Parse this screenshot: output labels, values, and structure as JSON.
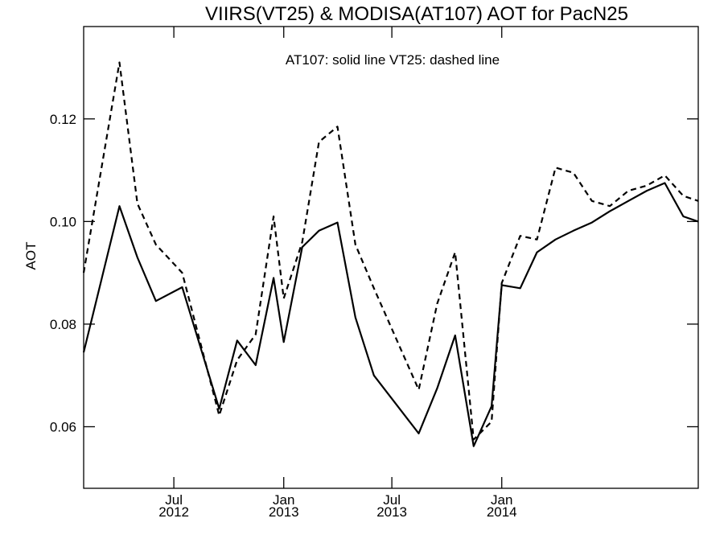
{
  "chart_data": {
    "type": "line",
    "title": "VIIRS(VT25) & MODISA(AT107)  AOT for PacN25",
    "subtitle": "AT107: solid line   VT25: dashed line",
    "xlabel": "",
    "ylabel": "AOT",
    "ylim": [
      0.048,
      0.138
    ],
    "xlim": [
      "2012-02-01",
      "2014-11-26"
    ],
    "yticks": [
      0.06,
      0.08,
      0.1,
      0.12
    ],
    "ytick_labels": [
      "0.06",
      "0.08",
      "0.10",
      "0.12"
    ],
    "xticks": [
      {
        "date": "2012-07-01",
        "month": "Jul",
        "year": "2012"
      },
      {
        "date": "2013-01-01",
        "month": "Jan",
        "year": "2013"
      },
      {
        "date": "2013-07-01",
        "month": "Jul",
        "year": "2013"
      },
      {
        "date": "2014-01-01",
        "month": "Jan",
        "year": "2014"
      }
    ],
    "grid": false,
    "series": [
      {
        "name": "AT107",
        "style": "solid",
        "color": "#000000",
        "x": [
          "2012-02-01",
          "2012-04-01",
          "2012-05-01",
          "2012-06-01",
          "2012-07-15",
          "2012-09-15",
          "2012-10-15",
          "2012-11-15",
          "2012-12-15",
          "2013-01-01",
          "2013-02-01",
          "2013-03-01",
          "2013-04-01",
          "2013-05-01",
          "2013-06-01",
          "2013-08-15",
          "2013-09-15",
          "2013-10-15",
          "2013-11-15",
          "2013-12-15",
          "2014-01-01",
          "2014-02-01",
          "2014-03-01",
          "2014-04-01",
          "2014-05-01",
          "2014-06-01",
          "2014-07-01",
          "2014-08-01",
          "2014-09-01",
          "2014-10-01",
          "2014-11-01",
          "2014-11-26"
        ],
        "values": [
          0.0745,
          0.103,
          0.093,
          0.0845,
          0.0872,
          0.0635,
          0.0768,
          0.072,
          0.089,
          0.0765,
          0.095,
          0.0982,
          0.0998,
          0.0813,
          0.07,
          0.0587,
          0.0675,
          0.0778,
          0.0562,
          0.064,
          0.0876,
          0.087,
          0.094,
          0.0965,
          0.0982,
          0.0998,
          0.102,
          0.104,
          0.106,
          0.1075,
          0.101,
          0.1
        ]
      },
      {
        "name": "VT25",
        "style": "dashed",
        "color": "#000000",
        "x": [
          "2012-02-01",
          "2012-04-01",
          "2012-05-01",
          "2012-06-01",
          "2012-07-15",
          "2012-09-15",
          "2012-10-15",
          "2012-11-15",
          "2012-12-15",
          "2013-01-01",
          "2013-02-01",
          "2013-03-01",
          "2013-04-01",
          "2013-05-01",
          "2013-06-01",
          "2013-08-15",
          "2013-09-15",
          "2013-10-15",
          "2013-11-15",
          "2013-12-15",
          "2014-01-01",
          "2014-02-01",
          "2014-03-01",
          "2014-04-01",
          "2014-05-01",
          "2014-06-01",
          "2014-07-01",
          "2014-08-01",
          "2014-09-01",
          "2014-10-01",
          "2014-11-01",
          "2014-11-26"
        ],
        "values": [
          0.09,
          0.131,
          0.1035,
          0.0955,
          0.09,
          0.0622,
          0.073,
          0.078,
          0.101,
          0.085,
          0.096,
          0.1155,
          0.1185,
          0.0955,
          0.087,
          0.0672,
          0.084,
          0.094,
          0.0575,
          0.061,
          0.088,
          0.0972,
          0.0965,
          0.1105,
          0.1095,
          0.104,
          0.103,
          0.106,
          0.107,
          0.109,
          0.105,
          0.104
        ]
      }
    ]
  }
}
